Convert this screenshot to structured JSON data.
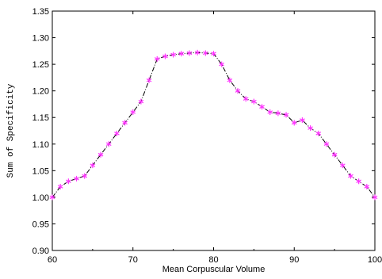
{
  "chart_data": {
    "type": "line",
    "title": "",
    "xlabel": "Mean Corpuscular Volume",
    "ylabel": "Sum of Specificity",
    "xlim": [
      60,
      100
    ],
    "ylim": [
      0.9,
      1.35
    ],
    "x_ticks": [
      "60",
      "70",
      "80",
      "90",
      "100"
    ],
    "y_ticks": [
      "0.90",
      "0.95",
      "1.00",
      "1.05",
      "1.10",
      "1.15",
      "1.20",
      "1.25",
      "1.30",
      "1.35"
    ],
    "grid": false,
    "legend": "none",
    "line_style": "dash-dot",
    "line_color": "#000000",
    "marker": "asterisk",
    "marker_color": "#ff33ff",
    "series": [
      {
        "x": [
          60,
          61,
          62,
          63,
          64,
          65,
          66,
          67,
          68,
          69,
          70,
          71,
          72,
          73,
          74,
          75,
          76,
          77,
          78,
          79,
          80,
          81,
          82,
          83,
          84,
          85,
          86,
          87,
          88,
          89,
          90,
          91,
          92,
          93,
          94,
          95,
          96,
          97,
          98,
          99,
          100
        ],
        "values": [
          1.0,
          1.02,
          1.03,
          1.035,
          1.04,
          1.06,
          1.08,
          1.1,
          1.12,
          1.14,
          1.16,
          1.18,
          1.22,
          1.26,
          1.265,
          1.268,
          1.27,
          1.271,
          1.272,
          1.271,
          1.27,
          1.25,
          1.22,
          1.2,
          1.185,
          1.18,
          1.17,
          1.16,
          1.158,
          1.155,
          1.14,
          1.145,
          1.13,
          1.12,
          1.1,
          1.08,
          1.06,
          1.04,
          1.03,
          1.02,
          1.0
        ]
      }
    ]
  }
}
